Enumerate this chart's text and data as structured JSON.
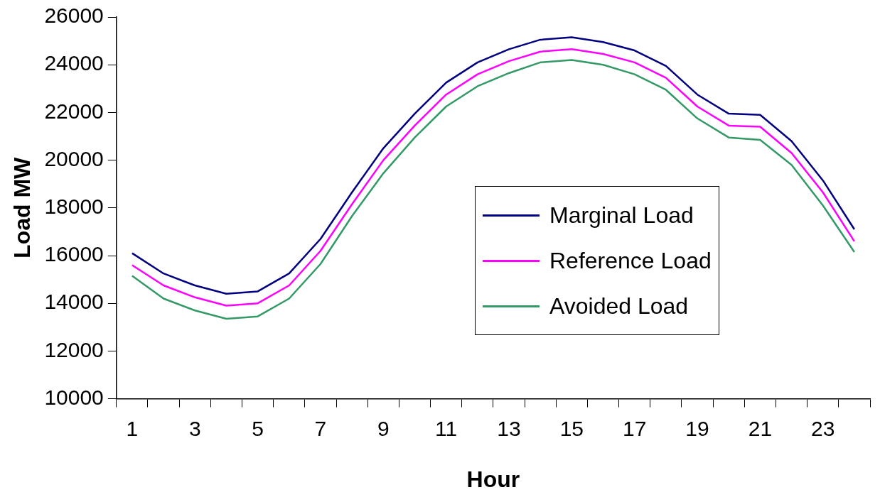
{
  "chart_data": {
    "type": "line",
    "xlabel": "Hour",
    "ylabel": "Load MW",
    "x": [
      1,
      2,
      3,
      4,
      5,
      6,
      7,
      8,
      9,
      10,
      11,
      12,
      13,
      14,
      15,
      16,
      17,
      18,
      19,
      20,
      21,
      22,
      23,
      24
    ],
    "xlim": [
      0.5,
      24.5
    ],
    "xticks": [
      {
        "value": 0.5,
        "label": null
      },
      1,
      {
        "value": 1.5,
        "label": null
      },
      {
        "value": 2.5,
        "label": null
      },
      3,
      {
        "value": 3.5,
        "label": null
      },
      {
        "value": 4.5,
        "label": null
      },
      5,
      {
        "value": 5.5,
        "label": null
      },
      {
        "value": 6.5,
        "label": null
      },
      7,
      {
        "value": 7.5,
        "label": null
      },
      {
        "value": 8.5,
        "label": null
      },
      9,
      {
        "value": 9.5,
        "label": null
      },
      {
        "value": 10.5,
        "label": null
      },
      11,
      {
        "value": 11.5,
        "label": null
      },
      {
        "value": 12.5,
        "label": null
      },
      13,
      {
        "value": 13.5,
        "label": null
      },
      {
        "value": 14.5,
        "label": null
      },
      15,
      {
        "value": 15.5,
        "label": null
      },
      {
        "value": 16.5,
        "label": null
      },
      17,
      {
        "value": 17.5,
        "label": null
      },
      {
        "value": 18.5,
        "label": null
      },
      19,
      {
        "value": 19.5,
        "label": null
      },
      {
        "value": 20.5,
        "label": null
      },
      21,
      {
        "value": 21.5,
        "label": null
      },
      {
        "value": 22.5,
        "label": null
      },
      23,
      {
        "value": 23.5,
        "label": null
      },
      {
        "value": 24.5,
        "label": null
      }
    ],
    "series": [
      {
        "name": "Marginal Load",
        "color": "#000080",
        "values": [
          16100,
          15250,
          14750,
          14400,
          14500,
          15250,
          16700,
          18650,
          20500,
          21950,
          23250,
          24100,
          24650,
          25050,
          25150,
          24950,
          24600,
          23950,
          22750,
          21950,
          21900,
          20800,
          19150,
          17100
        ]
      },
      {
        "name": "Reference Load",
        "color": "#ff00ff",
        "values": [
          15600,
          14750,
          14250,
          13900,
          14000,
          14750,
          16200,
          18150,
          20000,
          21450,
          22750,
          23600,
          24150,
          24550,
          24650,
          24450,
          24100,
          23450,
          22250,
          21450,
          21400,
          20300,
          18650,
          16600
        ]
      },
      {
        "name": "Avoided Load",
        "color": "#339966",
        "values": [
          15150,
          14200,
          13700,
          13350,
          13450,
          14200,
          15650,
          17650,
          19450,
          20950,
          22250,
          23100,
          23650,
          24100,
          24200,
          24000,
          23600,
          22950,
          21750,
          20950,
          20850,
          19800,
          18100,
          16150
        ]
      }
    ],
    "ylim": [
      10000,
      26000
    ],
    "yticks": [
      10000,
      12000,
      14000,
      16000,
      18000,
      20000,
      22000,
      24000,
      26000
    ],
    "grid": false,
    "legend": "right",
    "marker": "none",
    "line_style": "solid"
  }
}
